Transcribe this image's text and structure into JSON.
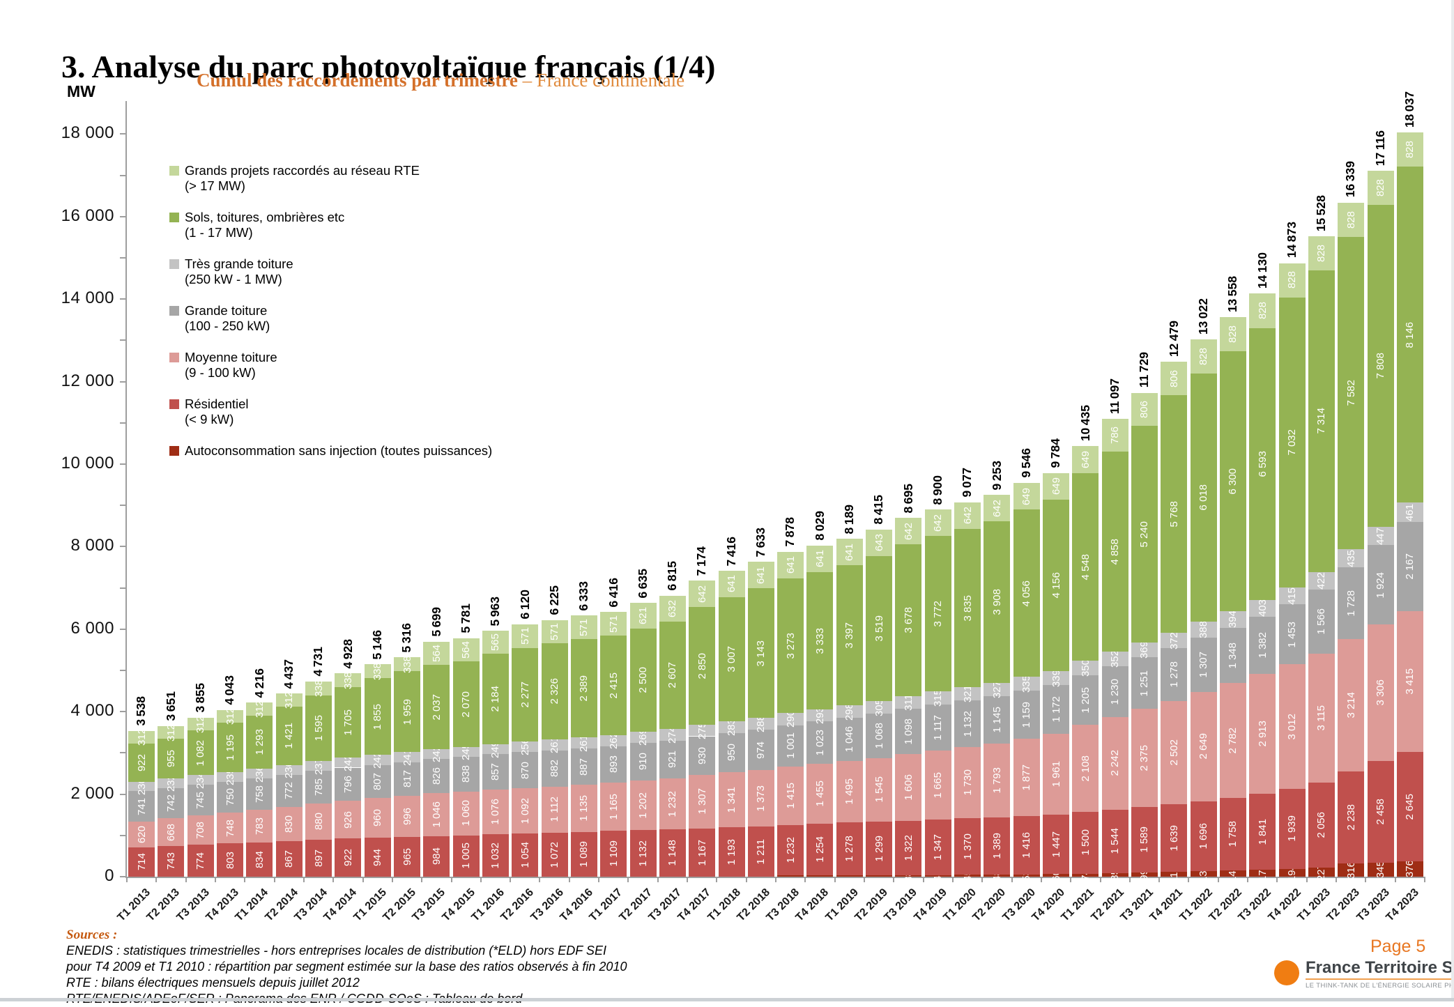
{
  "page": {
    "title": "3. Analyse du parc photovoltaïque français (1/4)"
  },
  "chart": {
    "unit_label": "MW",
    "title_bold": "Cumul des raccordements par trimestre",
    "title_rest": "– France continentale"
  },
  "legend": [
    {
      "label": "Grands projets raccordés au réseau RTE",
      "sublabel": "(> 17 MW)",
      "color": "#c4d79b"
    },
    {
      "label": "Sols, toitures, ombrières etc",
      "sublabel": "(1 - 17 MW)",
      "color": "#94b353"
    },
    {
      "label": "Très grande toiture",
      "sublabel": "(250 kW - 1 MW)",
      "color": "#c3c3c3"
    },
    {
      "label": "Grande toiture",
      "sublabel": "(100 - 250 kW)",
      "color": "#a6a6a6"
    },
    {
      "label": "Moyenne toiture",
      "sublabel": "(9 - 100 kW)",
      "color": "#dd9b97"
    },
    {
      "label": "Résidentiel",
      "sublabel": "(< 9 kW)",
      "color": "#c0504d"
    },
    {
      "label": "Autoconsommation sans injection (toutes puissances)",
      "sublabel": "",
      "color": "#9f2d15"
    }
  ],
  "chart_data": {
    "type": "bar",
    "stacked": true,
    "title": "Cumul des raccordements par trimestre – France continentale",
    "xlabel": "Trimestre",
    "ylabel": "MW",
    "ylim": [
      0,
      18800
    ],
    "y_major_tick": 2000,
    "y_minor_tick": 1000,
    "grid": false,
    "legend_position": "upper-left",
    "categories": [
      "T1 2013",
      "T2 2013",
      "T3 2013",
      "T4 2013",
      "T1 2014",
      "T2 2014",
      "T3 2014",
      "T4 2014",
      "T1 2015",
      "T2 2015",
      "T3 2015",
      "T4 2015",
      "T1 2016",
      "T2 2016",
      "T3 2016",
      "T4 2016",
      "T1 2017",
      "T2 2017",
      "T3 2017",
      "T4 2017",
      "T1 2018",
      "T2 2018",
      "T3 2018",
      "T4 2018",
      "T1 2019",
      "T2 2019",
      "T3 2019",
      "T4 2019",
      "T1 2020",
      "T2 2020",
      "T3 2020",
      "T4 2020",
      "T1 2021",
      "T2 2021",
      "T3 2021",
      "T4 2021",
      "T1 2022",
      "T2 2022",
      "T3 2022",
      "T4 2022",
      "T1 2023",
      "T2 2023",
      "T3 2023",
      "T4 2023"
    ],
    "series": [
      {
        "name": "Autoconsommation sans injection (toutes puissances)",
        "color": "#9f2d15",
        "label_min": 38,
        "values": [
          0,
          0,
          0,
          0,
          0,
          0,
          0,
          0,
          0,
          0,
          0,
          0,
          0,
          0,
          0,
          0,
          0,
          0,
          0,
          0,
          0,
          0,
          26,
          30,
          34,
          36,
          38,
          42,
          45,
          48,
          53,
          60,
          74,
          85,
          99,
          115,
          136,
          148,
          170,
          194,
          227,
          316,
          345,
          376
        ]
      },
      {
        "name": "Résidentiel (< 9 kW)",
        "color": "#c0504d",
        "label_min": 200,
        "values": [
          714,
          743,
          774,
          803,
          834,
          867,
          897,
          922,
          944,
          965,
          984,
          1005,
          1032,
          1054,
          1072,
          1089,
          1109,
          1132,
          1148,
          1167,
          1193,
          1211,
          1232,
          1254,
          1278,
          1299,
          1322,
          1347,
          1370,
          1389,
          1416,
          1447,
          1500,
          1544,
          1589,
          1639,
          1696,
          1758,
          1841,
          1939,
          2056,
          2238,
          2458,
          2645
        ]
      },
      {
        "name": "Moyenne toiture (9 - 100 kW)",
        "color": "#dd9b97",
        "label_min": 200,
        "values": [
          620,
          668,
          708,
          748,
          783,
          830,
          880,
          926,
          960,
          996,
          1046,
          1060,
          1076,
          1092,
          1112,
          1135,
          1165,
          1202,
          1232,
          1307,
          1341,
          1373,
          1415,
          1455,
          1495,
          1545,
          1606,
          1665,
          1730,
          1793,
          1877,
          1961,
          2108,
          2242,
          2375,
          2502,
          2649,
          2782,
          2913,
          3012,
          3115,
          3214,
          3306,
          3415
        ]
      },
      {
        "name": "Grande toiture (100 - 250 kW)",
        "color": "#a6a6a6",
        "label_min": 200,
        "values": [
          741,
          742,
          745,
          750,
          758,
          772,
          785,
          796,
          807,
          817,
          826,
          838,
          857,
          870,
          882,
          887,
          893,
          910,
          921,
          930,
          950,
          974,
          1001,
          1023,
          1046,
          1068,
          1098,
          1117,
          1132,
          1145,
          1159,
          1172,
          1205,
          1230,
          1251,
          1278,
          1307,
          1348,
          1382,
          1453,
          1566,
          1728,
          1924,
          2167
        ]
      },
      {
        "name": "Très grande toiture (250 kW - 1 MW)",
        "color": "#c3c3c3",
        "label_min": 200,
        "values": [
          230,
          232,
          234,
          235,
          236,
          236,
          237,
          242,
          242,
          241,
          242,
          245,
          249,
          256,
          261,
          261,
          262,
          269,
          274,
          275,
          283,
          288,
          290,
          293,
          298,
          305,
          311,
          315,
          321,
          327,
          335,
          339,
          350,
          352,
          369,
          372,
          388,
          394,
          403,
          415,
          422,
          435,
          447,
          461
        ]
      },
      {
        "name": "Sols, toitures, ombrières etc (1 - 17 MW)",
        "color": "#94b353",
        "label_min": 200,
        "values": [
          922,
          955,
          1082,
          1195,
          1293,
          1421,
          1595,
          1705,
          1855,
          1959,
          2037,
          2070,
          2184,
          2277,
          2326,
          2389,
          2415,
          2500,
          2607,
          2850,
          3007,
          3143,
          3273,
          3333,
          3397,
          3519,
          3678,
          3772,
          3835,
          3908,
          4056,
          4156,
          4548,
          4858,
          5240,
          5768,
          6018,
          6300,
          6593,
          7032,
          7314,
          7582,
          7808,
          8146
        ]
      },
      {
        "name": "Grands projets raccordés au réseau RTE (> 17 MW)",
        "color": "#c4d79b",
        "label_min": 200,
        "values": [
          312,
          312,
          312,
          312,
          312,
          312,
          338,
          338,
          338,
          338,
          564,
          564,
          565,
          571,
          571,
          571,
          571,
          621,
          632,
          642,
          641,
          641,
          641,
          641,
          641,
          643,
          642,
          642,
          642,
          642,
          649,
          649,
          649,
          786,
          806,
          806,
          828,
          828,
          828,
          828,
          828,
          828,
          828,
          828
        ]
      }
    ],
    "totals": [
      3538,
      3651,
      3855,
      4043,
      4216,
      4437,
      4731,
      4928,
      5146,
      5316,
      5699,
      5781,
      5963,
      6120,
      6225,
      6333,
      6416,
      6635,
      6815,
      7174,
      7416,
      7633,
      7878,
      8029,
      8189,
      8415,
      8695,
      8900,
      9077,
      9253,
      9546,
      9784,
      10435,
      11097,
      11729,
      12479,
      13022,
      13558,
      14130,
      14873,
      15528,
      16339,
      17116,
      18037
    ]
  },
  "footer": {
    "sources_heading": "Sources :",
    "lines": [
      "ENEDIS : statistiques trimestrielles - hors entreprises locales de distribution (*ELD) hors EDF SEI",
      "pour T4 2009 et T1 2010 : répartition par segment estimée sur la base des ratios observés à fin 2010",
      "RTE : bilans électriques mensuels depuis juillet 2012",
      "RTE/ENEDIS/ADEeF/SER : Panorama des ENR /  CGDD-SOeS : Tableau de bord"
    ],
    "page_label": "Page 5",
    "logo": {
      "name": "France Territoire Solaire",
      "tagline": "LE THINK-TANK DE L'ÉNERGIE SOLAIRE PHOTOVOLTAÏQUE"
    }
  }
}
